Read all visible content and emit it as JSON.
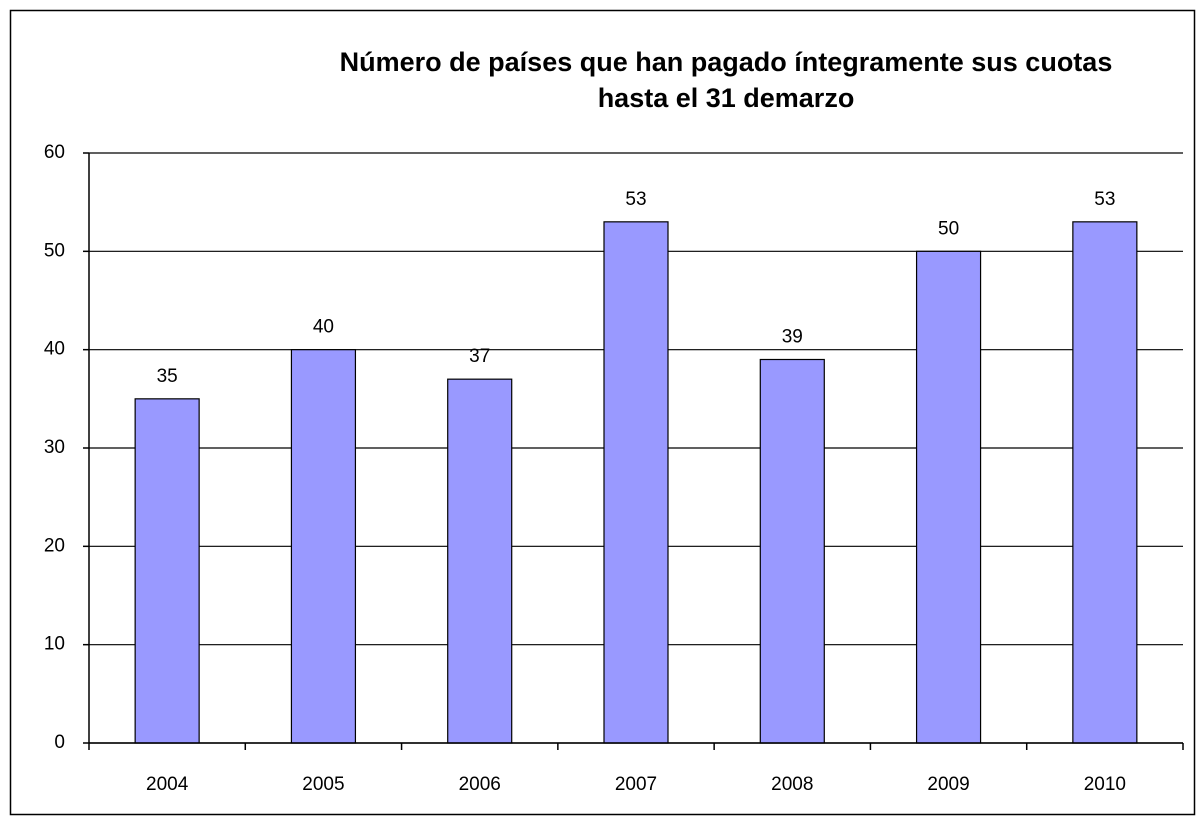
{
  "chart_data": {
    "type": "bar",
    "title": [
      "Número de países que han pagado íntegramente sus cuotas",
      "hasta el 31 demarzo"
    ],
    "categories": [
      "2004",
      "2005",
      "2006",
      "2007",
      "2008",
      "2009",
      "2010"
    ],
    "values": [
      35,
      40,
      37,
      53,
      39,
      50,
      53
    ],
    "color": "#9999ff",
    "ylim": [
      0,
      60
    ],
    "yticks": [
      0,
      10,
      20,
      30,
      40,
      50,
      60
    ],
    "grid": true
  }
}
